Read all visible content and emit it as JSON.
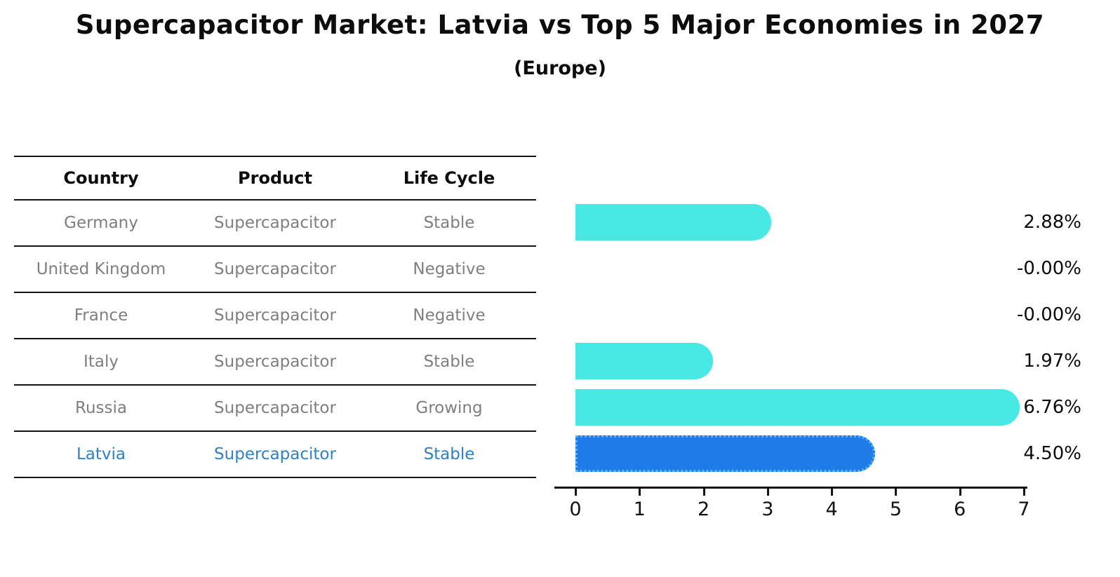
{
  "title": "Supercapacitor Market: Latvia vs Top 5 Major Economies in 2027",
  "subtitle": "(Europe)",
  "table": {
    "headers": [
      "Country",
      "Product",
      "Life Cycle"
    ],
    "rows": [
      {
        "country": "Germany",
        "product": "Supercapacitor",
        "life_cycle": "Stable"
      },
      {
        "country": "United Kingdom",
        "product": "Supercapacitor",
        "life_cycle": "Negative"
      },
      {
        "country": "France",
        "product": "Supercapacitor",
        "life_cycle": "Negative"
      },
      {
        "country": "Italy",
        "product": "Supercapacitor",
        "life_cycle": "Stable"
      },
      {
        "country": "Russia",
        "product": "Supercapacitor",
        "life_cycle": "Growing"
      },
      {
        "country": "Latvia",
        "product": "Supercapacitor",
        "life_cycle": "Stable"
      }
    ],
    "highlighted_row": "Latvia"
  },
  "chart_data": {
    "type": "bar",
    "orientation": "horizontal",
    "title": "Supercapacitor Market: Latvia vs Top 5 Major Economies in 2027",
    "subtitle": "(Europe)",
    "categories": [
      "Germany",
      "United Kingdom",
      "France",
      "Italy",
      "Russia",
      "Latvia"
    ],
    "values": [
      2.88,
      -0.0,
      -0.0,
      1.97,
      6.76,
      4.5
    ],
    "value_labels": [
      "2.88%",
      "-0.00%",
      "-0.00%",
      "1.97%",
      "6.76%",
      "4.50%"
    ],
    "xlabel": "",
    "ylabel": "",
    "xlim": [
      0,
      7
    ],
    "x_ticks": [
      "0",
      "1",
      "2",
      "3",
      "4",
      "5",
      "6",
      "7"
    ],
    "grid": false,
    "legend": "none",
    "bar_color": "#48e8e4",
    "highlight_index": 5,
    "highlight_bar_color": "#1e7be8",
    "highlight_text_color": "#2e80c8",
    "value_label_color": "#0d0d0d"
  }
}
